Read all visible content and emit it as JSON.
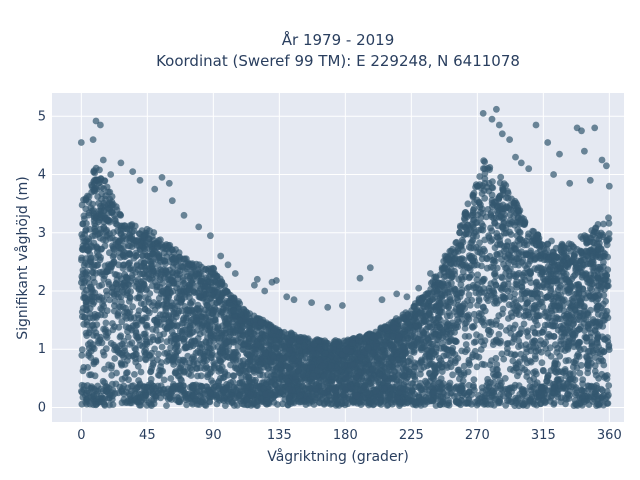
{
  "chart_data": {
    "type": "scatter",
    "title": "År 1979 - 2019",
    "subtitle": "Koordinat (Sweref 99 TM): E 229248, N 6411078",
    "xlabel": "Vågriktning (grader)",
    "ylabel": "Signifikant våghöjd (m)",
    "xlim": [
      -20,
      370
    ],
    "ylim": [
      -0.25,
      5.4
    ],
    "xticks": [
      0,
      45,
      90,
      135,
      180,
      225,
      270,
      315,
      360
    ],
    "yticks": [
      0,
      1,
      2,
      3,
      4,
      5
    ],
    "grid": true,
    "marker_color": "#33576f",
    "plot_bg": "#e5e9f2",
    "envelope": {
      "x": [
        0,
        10,
        20,
        30,
        45,
        60,
        75,
        90,
        100,
        110,
        120,
        135,
        150,
        165,
        180,
        195,
        210,
        225,
        240,
        255,
        265,
        275,
        285,
        295,
        305,
        315,
        330,
        345,
        360
      ],
      "ymax": [
        3.5,
        4.2,
        3.7,
        3.2,
        3.1,
        2.8,
        2.5,
        2.4,
        2.0,
        1.75,
        1.55,
        1.35,
        1.22,
        1.15,
        1.15,
        1.25,
        1.45,
        1.7,
        2.2,
        2.9,
        3.6,
        4.3,
        4.0,
        3.6,
        3.1,
        2.9,
        2.8,
        3.0,
        3.3
      ]
    },
    "outliers": [
      [
        0,
        4.55
      ],
      [
        8,
        4.6
      ],
      [
        10,
        4.92
      ],
      [
        13,
        4.85
      ],
      [
        15,
        4.25
      ],
      [
        20,
        4.0
      ],
      [
        27,
        4.2
      ],
      [
        35,
        4.05
      ],
      [
        40,
        3.9
      ],
      [
        50,
        3.75
      ],
      [
        55,
        3.95
      ],
      [
        60,
        3.85
      ],
      [
        62,
        3.55
      ],
      [
        70,
        3.3
      ],
      [
        80,
        3.1
      ],
      [
        88,
        2.95
      ],
      [
        95,
        2.6
      ],
      [
        100,
        2.45
      ],
      [
        105,
        2.3
      ],
      [
        118,
        2.1
      ],
      [
        120,
        2.2
      ],
      [
        125,
        2.0
      ],
      [
        130,
        2.15
      ],
      [
        133,
        2.18
      ],
      [
        140,
        1.9
      ],
      [
        145,
        1.85
      ],
      [
        157,
        1.8
      ],
      [
        168,
        1.72
      ],
      [
        178,
        1.75
      ],
      [
        190,
        2.22
      ],
      [
        197,
        2.4
      ],
      [
        205,
        1.85
      ],
      [
        215,
        1.95
      ],
      [
        222,
        1.9
      ],
      [
        230,
        2.05
      ],
      [
        238,
        2.3
      ],
      [
        248,
        2.6
      ],
      [
        258,
        3.0
      ],
      [
        262,
        3.35
      ],
      [
        266,
        3.3
      ],
      [
        270,
        3.8
      ],
      [
        274,
        5.05
      ],
      [
        280,
        4.95
      ],
      [
        283,
        5.12
      ],
      [
        285,
        4.85
      ],
      [
        287,
        4.7
      ],
      [
        292,
        4.6
      ],
      [
        296,
        4.3
      ],
      [
        300,
        4.2
      ],
      [
        305,
        4.1
      ],
      [
        310,
        4.85
      ],
      [
        318,
        4.55
      ],
      [
        322,
        4.0
      ],
      [
        326,
        4.35
      ],
      [
        333,
        3.85
      ],
      [
        338,
        4.8
      ],
      [
        341,
        4.75
      ],
      [
        343,
        4.4
      ],
      [
        347,
        3.9
      ],
      [
        350,
        4.8
      ],
      [
        355,
        4.25
      ],
      [
        358,
        4.15
      ],
      [
        360,
        3.8
      ]
    ]
  }
}
